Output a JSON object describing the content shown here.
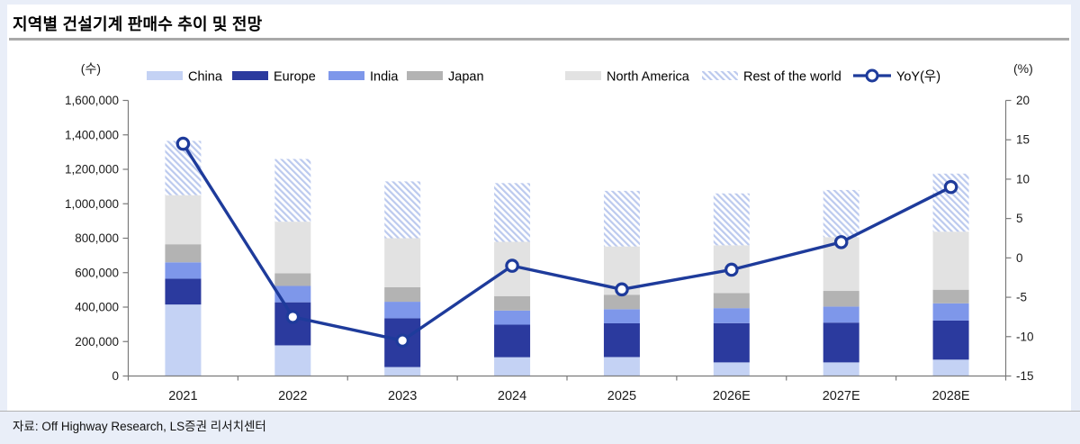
{
  "title": "지역별 건설기계 판매수 추이 및 전망",
  "source": "자료: Off Highway Research, LS증권 리서치센터",
  "colors": {
    "page_background": "#e9eef8",
    "panel_background": "#ffffff",
    "title_rule": "#a9a9a9",
    "axis_line": "#7a7a7a",
    "text": "#1a1a1a",
    "yoy_line": "#1e3b9b"
  },
  "chart_data": {
    "type": "bar",
    "subtype": "stacked-bar-with-line",
    "title": "지역별 건설기계 판매수 추이 및 전망",
    "categories": [
      "2021",
      "2022",
      "2023",
      "2024",
      "2025",
      "2026E",
      "2027E",
      "2028E"
    ],
    "series": [
      {
        "name": "China",
        "color": "#c4d2f4",
        "values": [
          415000,
          178000,
          52000,
          109000,
          110000,
          79000,
          79000,
          95000
        ]
      },
      {
        "name": "Europe",
        "color": "#2b3a9e",
        "values": [
          150000,
          250000,
          283000,
          189000,
          196000,
          228000,
          231000,
          227000
        ]
      },
      {
        "name": "India",
        "color": "#7e97ea",
        "values": [
          95000,
          95000,
          96000,
          82000,
          82000,
          87000,
          93000,
          100000
        ]
      },
      {
        "name": "Japan",
        "color": "#b3b3b3",
        "values": [
          105000,
          73000,
          84000,
          84000,
          84000,
          88000,
          91000,
          79000
        ]
      },
      {
        "name": "North America",
        "color": "#e2e2e2",
        "values": [
          285000,
          300000,
          285000,
          315000,
          280000,
          277000,
          312000,
          337000
        ]
      },
      {
        "name": "Rest of the world",
        "color": "#bccaee",
        "pattern": "diagonal-hatch",
        "values": [
          315000,
          364000,
          330000,
          341000,
          323000,
          301000,
          274000,
          337000
        ]
      }
    ],
    "line_series": {
      "name": "YoY(우)",
      "axis": "right",
      "color": "#1e3b9b",
      "marker": "open-circle",
      "values": [
        14.5,
        -7.5,
        -10.5,
        -1.0,
        -4.0,
        -1.5,
        2.0,
        9.0
      ]
    },
    "totals": [
      1365000,
      1260000,
      1130000,
      1120000,
      1075000,
      1060000,
      1080000,
      1175000
    ],
    "left_axis": {
      "unit": "(수)",
      "min": 0,
      "max": 1600000,
      "step": 200000
    },
    "right_axis": {
      "unit": "(%)",
      "min": -15,
      "max": 20,
      "step": 5
    },
    "legend_position": "top",
    "grid": false
  }
}
